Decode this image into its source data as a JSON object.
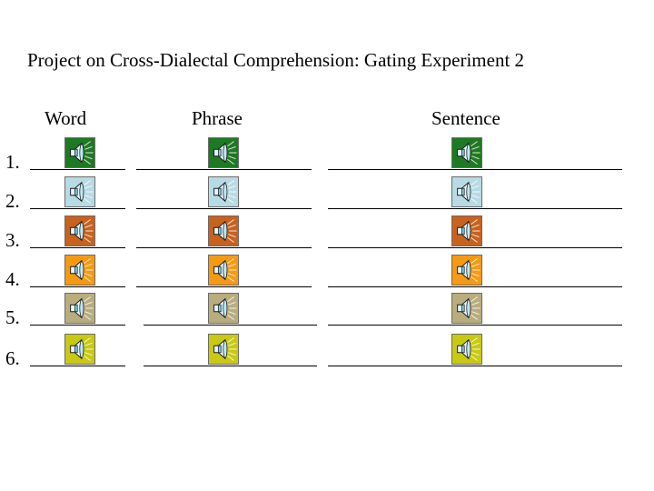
{
  "title": "Project on Cross-Dialectal Comprehension: Gating Experiment 2",
  "columns": [
    "Word",
    "Phrase",
    "Sentence"
  ],
  "rows": [
    {
      "label": "1.",
      "color": "#1e7a22"
    },
    {
      "label": "2.",
      "color": "#b7dbe4"
    },
    {
      "label": "3.",
      "color": "#c8621c"
    },
    {
      "label": "4.",
      "color": "#f59a12"
    },
    {
      "label": "5.",
      "color": "#b9ad7e"
    },
    {
      "label": "6.",
      "color": "#c9c912"
    }
  ],
  "icons": {
    "speaker": "speaker-icon"
  }
}
